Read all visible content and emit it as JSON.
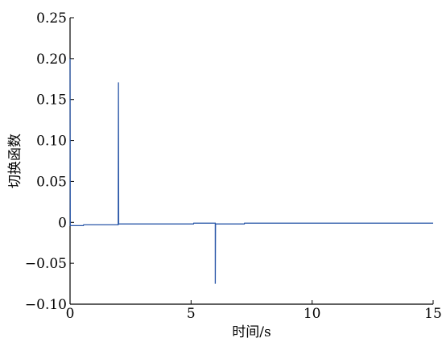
{
  "chart_data": {
    "type": "line",
    "title": "",
    "xlabel": "时间/s",
    "ylabel": "切换函数",
    "xlim": [
      0,
      15
    ],
    "ylim": [
      -0.1,
      0.25
    ],
    "x_ticks": [
      0,
      5,
      10,
      15
    ],
    "x_tick_labels": [
      "0",
      "5",
      "10",
      "15"
    ],
    "y_ticks": [
      -0.1,
      -0.05,
      0,
      0.05,
      0.1,
      0.15,
      0.2,
      0.25
    ],
    "y_tick_labels": [
      "−0.10",
      "−0.05",
      "0",
      "0.05",
      "0.10",
      "0.15",
      "0.20",
      "0.25"
    ],
    "grid": false,
    "series_color": "#2a57a8",
    "series": [
      {
        "points": [
          [
            0.0,
            0.2
          ],
          [
            0.01,
            -0.004
          ],
          [
            0.55,
            -0.004
          ],
          [
            0.56,
            -0.003
          ],
          [
            1.99,
            -0.003
          ],
          [
            2.0,
            0.171
          ],
          [
            2.01,
            -0.002
          ],
          [
            5.1,
            -0.002
          ],
          [
            5.11,
            -0.001
          ],
          [
            6.0,
            -0.001
          ],
          [
            6.0,
            -0.075
          ],
          [
            6.01,
            -0.002
          ],
          [
            7.2,
            -0.002
          ],
          [
            7.21,
            -0.001
          ],
          [
            15.0,
            -0.001
          ]
        ]
      }
    ]
  }
}
